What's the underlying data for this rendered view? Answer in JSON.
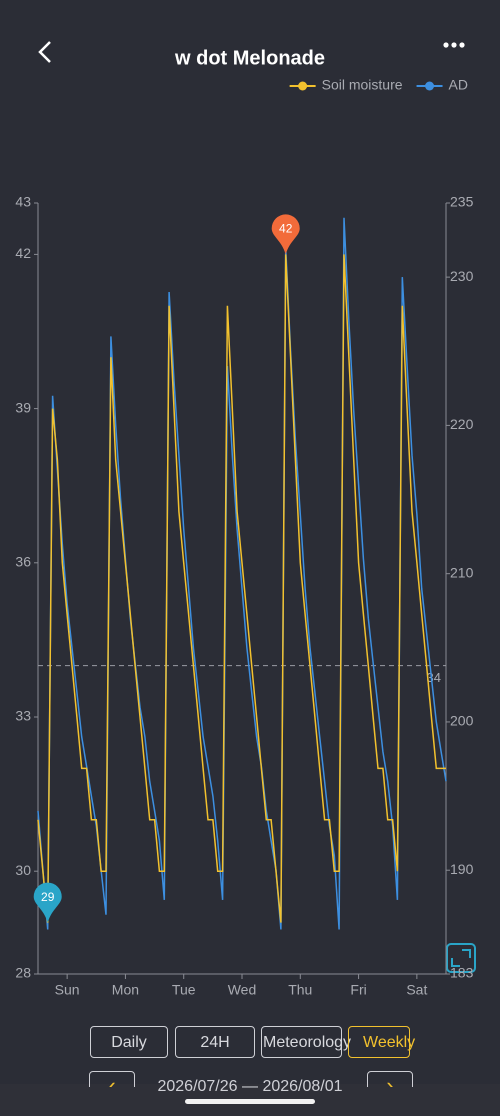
{
  "header": {
    "title": "w dot Melonade"
  },
  "chart_data": {
    "type": "line",
    "x": [
      0,
      2,
      4,
      6,
      8,
      10,
      12,
      14,
      16,
      18,
      20,
      22,
      24,
      26,
      28,
      30,
      32,
      34,
      36,
      38,
      40,
      42,
      44,
      46,
      48,
      50,
      52,
      54,
      56,
      58,
      60,
      62,
      64,
      66,
      68,
      70,
      72,
      74,
      76,
      78,
      80,
      82,
      84,
      86,
      88,
      90,
      92,
      94,
      96,
      98,
      100,
      102,
      104,
      106,
      108,
      110,
      112,
      114,
      116,
      118,
      120,
      122,
      124,
      126,
      128,
      130,
      132,
      134,
      136,
      138,
      140,
      142,
      144,
      146,
      148,
      150,
      152,
      154,
      156,
      158,
      160,
      162,
      164,
      166,
      168
    ],
    "xlim": [
      0,
      168
    ],
    "xticks": [
      {
        "value": 12,
        "label": "Sun"
      },
      {
        "value": 36,
        "label": "Mon"
      },
      {
        "value": 60,
        "label": "Tue"
      },
      {
        "value": 84,
        "label": "Wed"
      },
      {
        "value": 108,
        "label": "Thu"
      },
      {
        "value": 132,
        "label": "Fri"
      },
      {
        "value": 156,
        "label": "Sat"
      }
    ],
    "ylim": [
      28,
      43
    ],
    "yticks": [
      28,
      30,
      33,
      36,
      39,
      42,
      43
    ],
    "y2lim": [
      183,
      235
    ],
    "y2ticks": [
      183,
      190,
      200,
      210,
      220,
      230,
      235
    ],
    "series": [
      {
        "name": "Soil moisture",
        "color": "#f2c12e",
        "values": [
          31,
          30,
          29,
          39,
          38,
          36,
          35,
          34,
          33,
          32,
          32,
          31,
          31,
          30,
          30,
          40,
          38,
          37,
          36,
          35,
          34,
          33,
          32,
          31,
          31,
          30,
          30,
          41,
          39,
          37,
          36,
          35,
          34,
          33,
          32,
          31,
          31,
          30,
          30,
          41,
          39,
          37,
          36,
          35,
          34,
          33,
          32,
          31,
          31,
          30,
          29,
          42,
          40,
          38,
          36,
          35,
          34,
          33,
          32,
          31,
          31,
          30,
          30,
          42,
          40,
          38,
          36,
          35,
          34,
          33,
          32,
          32,
          31,
          31,
          30,
          41,
          39,
          37,
          36,
          35,
          34,
          33,
          32,
          32,
          32
        ]
      },
      {
        "name": "AD",
        "color": "#3d8fe0",
        "axis": "y2",
        "values": [
          194,
          190,
          186,
          222,
          217,
          212,
          208,
          205,
          202,
          199,
          197,
          195,
          193,
          190,
          187,
          226,
          220,
          215,
          211,
          207,
          204,
          201,
          199,
          196,
          194,
          192,
          188,
          229,
          223,
          218,
          213,
          209,
          205,
          202,
          199,
          197,
          195,
          192,
          188,
          224,
          218,
          213,
          209,
          205,
          202,
          199,
          197,
          194,
          192,
          190,
          186,
          232,
          225,
          219,
          214,
          209,
          205,
          202,
          199,
          196,
          193,
          191,
          186,
          234,
          227,
          221,
          216,
          211,
          207,
          204,
          201,
          198,
          196,
          193,
          188,
          230,
          224,
          218,
          214,
          209,
          206,
          203,
          200,
          198,
          196
        ]
      }
    ],
    "threshold": 34,
    "markers": [
      {
        "value": 42,
        "x": 102,
        "color": "#f26b3a"
      },
      {
        "value": 29,
        "x": 4,
        "color": "#2aa5c8"
      }
    ],
    "legend": "top-right"
  },
  "controls": {
    "buttons": [
      "Daily",
      "24H",
      "Meteorology",
      "Weekly"
    ],
    "date_range": "2026/07/26 — 2026/08/01"
  }
}
